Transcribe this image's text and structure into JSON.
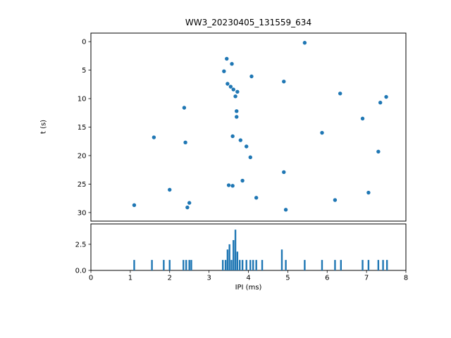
{
  "figure": {
    "title": "WW3_20230405_131559_634",
    "xlabel": "IPI (ms)",
    "ylabel": "t (s)"
  },
  "chart_data": [
    {
      "type": "scatter",
      "title": "WW3_20230405_131559_634",
      "xlabel": "",
      "ylabel": "t (s)",
      "xlim": [
        0,
        8
      ],
      "ylim": [
        -1.5,
        31.5
      ],
      "y_inverted": true,
      "yticks": [
        0,
        5,
        10,
        15,
        20,
        25,
        30
      ],
      "yticklabels": [
        "0",
        "5",
        "10",
        "15",
        "20",
        "25",
        "30"
      ],
      "grid": false,
      "color": "#1f77b4",
      "points": [
        [
          5.43,
          0.2
        ],
        [
          3.45,
          3.0
        ],
        [
          3.58,
          3.9
        ],
        [
          3.38,
          5.2
        ],
        [
          4.08,
          6.1
        ],
        [
          4.9,
          7.0
        ],
        [
          3.47,
          7.4
        ],
        [
          3.55,
          7.9
        ],
        [
          3.62,
          8.4
        ],
        [
          3.72,
          8.8
        ],
        [
          6.33,
          9.1
        ],
        [
          3.67,
          9.6
        ],
        [
          7.5,
          9.7
        ],
        [
          7.35,
          10.7
        ],
        [
          2.37,
          11.6
        ],
        [
          3.7,
          12.2
        ],
        [
          3.7,
          13.2
        ],
        [
          6.9,
          13.5
        ],
        [
          5.87,
          16.0
        ],
        [
          3.6,
          16.6
        ],
        [
          1.6,
          16.8
        ],
        [
          3.8,
          17.3
        ],
        [
          2.4,
          17.7
        ],
        [
          3.95,
          18.4
        ],
        [
          7.3,
          19.3
        ],
        [
          4.05,
          20.3
        ],
        [
          4.9,
          22.9
        ],
        [
          3.85,
          24.4
        ],
        [
          3.5,
          25.2
        ],
        [
          3.6,
          25.3
        ],
        [
          2.0,
          26.0
        ],
        [
          7.05,
          26.5
        ],
        [
          4.2,
          27.4
        ],
        [
          6.2,
          27.8
        ],
        [
          2.5,
          28.3
        ],
        [
          1.1,
          28.7
        ],
        [
          2.45,
          29.1
        ],
        [
          4.95,
          29.5
        ]
      ]
    },
    {
      "type": "bar",
      "title": "",
      "xlabel": "IPI (ms)",
      "ylabel": "",
      "xlim": [
        0,
        8
      ],
      "ylim": [
        0,
        4.45
      ],
      "xticks": [
        0,
        1,
        2,
        3,
        4,
        5,
        6,
        7,
        8
      ],
      "xticklabels": [
        "0",
        "1",
        "2",
        "3",
        "4",
        "5",
        "6",
        "7",
        "8"
      ],
      "yticks": [
        0.0,
        2.5
      ],
      "yticklabels": [
        "0.0",
        "2.5"
      ],
      "grid": false,
      "color": "#1f77b4",
      "bars": [
        [
          1.1,
          1
        ],
        [
          1.55,
          1
        ],
        [
          1.85,
          1
        ],
        [
          2.0,
          1
        ],
        [
          2.35,
          1
        ],
        [
          2.42,
          1
        ],
        [
          2.5,
          1
        ],
        [
          2.55,
          1
        ],
        [
          3.35,
          1
        ],
        [
          3.42,
          1
        ],
        [
          3.47,
          2
        ],
        [
          3.52,
          2.5
        ],
        [
          3.57,
          1
        ],
        [
          3.62,
          2.9
        ],
        [
          3.67,
          3.9
        ],
        [
          3.72,
          1.8
        ],
        [
          3.78,
          1
        ],
        [
          3.85,
          1
        ],
        [
          3.95,
          1
        ],
        [
          4.05,
          1
        ],
        [
          4.12,
          1
        ],
        [
          4.2,
          1
        ],
        [
          4.35,
          1
        ],
        [
          4.85,
          2
        ],
        [
          4.95,
          1
        ],
        [
          5.43,
          1
        ],
        [
          5.87,
          1
        ],
        [
          6.2,
          1
        ],
        [
          6.35,
          1
        ],
        [
          6.9,
          1
        ],
        [
          7.05,
          1
        ],
        [
          7.3,
          1
        ],
        [
          7.42,
          1
        ],
        [
          7.52,
          1
        ]
      ]
    }
  ]
}
